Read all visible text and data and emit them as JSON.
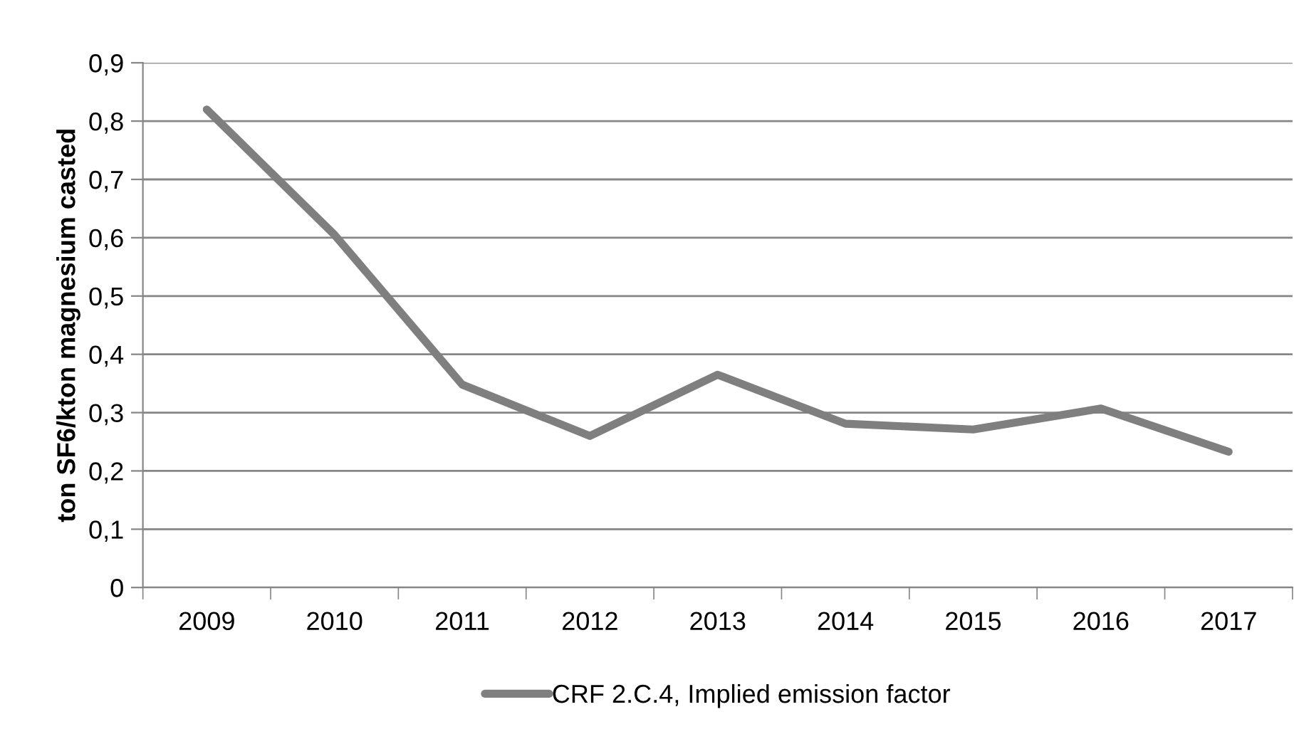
{
  "chart_data": {
    "type": "line",
    "ylabel": "ton SF6/kton magnesium casted",
    "categories": [
      "2009",
      "2010",
      "2011",
      "2012",
      "2013",
      "2014",
      "2015",
      "2016",
      "2017"
    ],
    "series": [
      {
        "name": "CRF 2.C.4, Implied emission factor",
        "color": "#7f7f7f",
        "values": [
          0.82,
          0.605,
          0.348,
          0.26,
          0.365,
          0.281,
          0.271,
          0.307,
          0.233
        ]
      }
    ],
    "ylim": [
      0,
      0.9
    ],
    "yticks": [
      {
        "value": 0,
        "label": "0"
      },
      {
        "value": 0.1,
        "label": "0,1"
      },
      {
        "value": 0.2,
        "label": "0,2"
      },
      {
        "value": 0.3,
        "label": "0,3"
      },
      {
        "value": 0.4,
        "label": "0,4"
      },
      {
        "value": 0.5,
        "label": "0,5"
      },
      {
        "value": 0.6,
        "label": "0,6"
      },
      {
        "value": 0.7,
        "label": "0,7"
      },
      {
        "value": 0.8,
        "label": "0,8"
      },
      {
        "value": 0.9,
        "label": "0,9"
      }
    ],
    "grid": "y",
    "legend": "bottom",
    "marker": "none",
    "line_style": "solid"
  }
}
